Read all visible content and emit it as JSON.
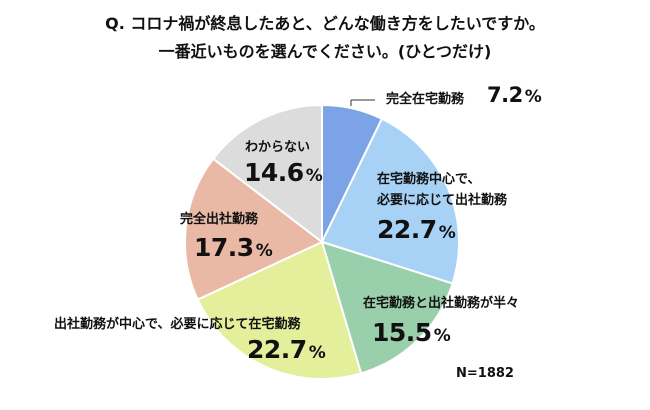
{
  "title_line1": "Q. コロナ禍が終息したあと、どんな働き方をしたいですか。",
  "title_line2": "一番近いものを選んでください。(ひとつだけ)",
  "sample_size": "N=1882",
  "chart_data": {
    "type": "pie",
    "title": "Q. コロナ禍が終息したあと、どんな働き方をしたいですか。 一番近いものを選んでください。(ひとつだけ)",
    "unit": "%",
    "slices": [
      {
        "label": "完全在宅勤務",
        "value": 7.2,
        "value_text": "7.2",
        "color": "#7ba3e6"
      },
      {
        "label": "在宅勤務中心で、必要に応じて出社勤務",
        "label_lines": [
          "在宅勤務中心で、",
          "必要に応じて出社勤務"
        ],
        "value": 22.7,
        "value_text": "22.7",
        "color": "#a7d2f5"
      },
      {
        "label": "在宅勤務と出社勤務が半々",
        "value": 15.5,
        "value_text": "15.5",
        "color": "#99cfaa"
      },
      {
        "label": "出社勤務が中心で、必要に応じて在宅勤務",
        "value": 22.7,
        "value_text": "22.7",
        "color": "#e3ef9a"
      },
      {
        "label": "完全出社勤務",
        "value": 17.3,
        "value_text": "17.3",
        "color": "#e9b9a5"
      },
      {
        "label": "わからない",
        "value": 14.6,
        "value_text": "14.6",
        "color": "#dcdcdc"
      }
    ]
  }
}
